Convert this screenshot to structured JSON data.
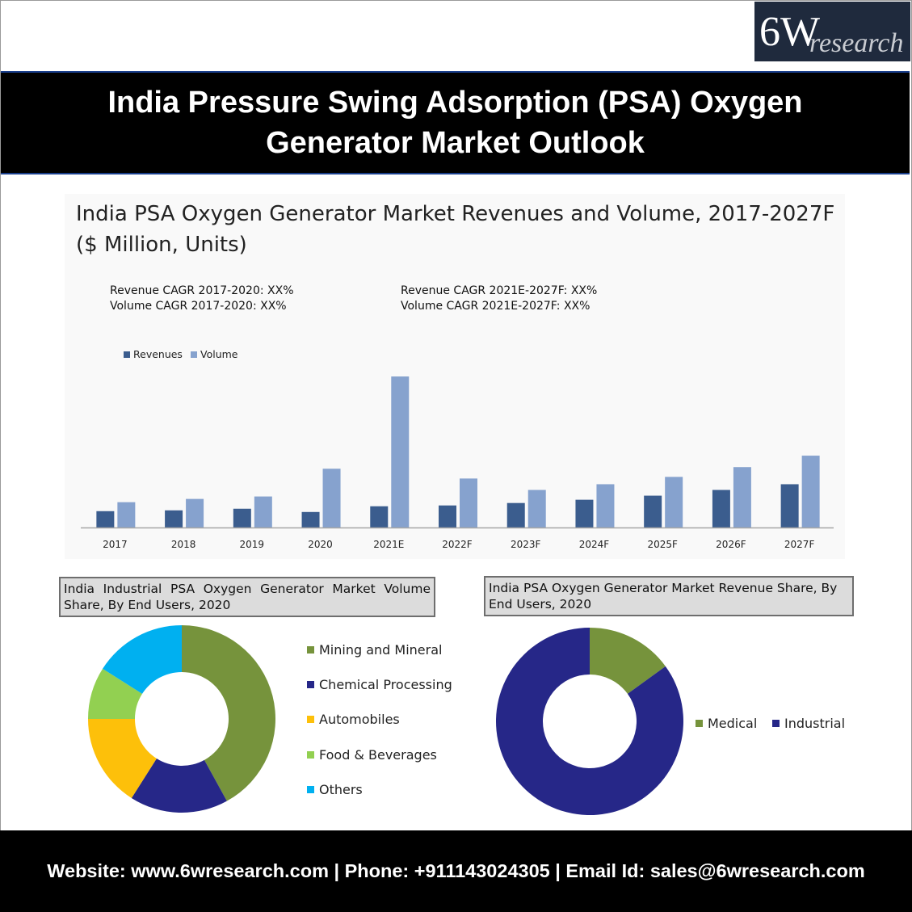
{
  "logo": {
    "big": "6W",
    "small": "research"
  },
  "title": {
    "line1": "India Pressure Swing Adsorption (PSA) Oxygen",
    "line2": "Generator Market Outlook"
  },
  "footer": {
    "text": "Website: www.6wresearch.com | Phone: +911143024305 | Email Id: sales@6wresearch.com"
  },
  "colors": {
    "revenues": "#3b5d8e",
    "volume": "#86a2ce",
    "mining": "#76933c",
    "chemical": "#262788",
    "automobiles": "#fdc00a",
    "food": "#92d051",
    "others": "#00b0f0",
    "medical": "#76933c",
    "industrial": "#262788"
  },
  "chart_data": [
    {
      "type": "bar",
      "title": "India PSA Oxygen Generator Market Revenues and Volume, 2017-2027F",
      "subtitle": "($ Million, Units)",
      "annotations": [
        "Revenue CAGR 2017-2020: XX%",
        "Volume CAGR 2017-2020: XX%",
        "Revenue CAGR 2021E-2027F: XX%",
        "Volume CAGR 2021E-2027F: XX%"
      ],
      "categories": [
        "2017",
        "2018",
        "2019",
        "2020",
        "2021E",
        "2022F",
        "2023F",
        "2024F",
        "2025F",
        "2026F",
        "2027F"
      ],
      "series": [
        {
          "name": "Revenues",
          "values": [
            20,
            21,
            23,
            19,
            26,
            27,
            30,
            34,
            39,
            46,
            53
          ]
        },
        {
          "name": "Volume",
          "values": [
            31,
            35,
            38,
            72,
            185,
            60,
            46,
            53,
            62,
            74,
            88
          ]
        }
      ],
      "ylim": [
        0,
        190
      ],
      "legend": "top-left",
      "grid": false
    },
    {
      "type": "pie",
      "title": "India Industrial PSA Oxygen Generator Market Volume Share, By End Users, 2020",
      "labels": [
        "Mining and Mineral",
        "Chemical Processing",
        "Automobiles",
        "Food & Beverages",
        "Others"
      ],
      "values": [
        42,
        17,
        16,
        9,
        16
      ],
      "donut": true,
      "legend": "right"
    },
    {
      "type": "pie",
      "title": "India PSA Oxygen Generator Market Revenue Share, By End Users, 2020",
      "labels": [
        "Medical",
        "Industrial"
      ],
      "values": [
        15,
        85
      ],
      "donut": true,
      "legend": "right"
    }
  ]
}
